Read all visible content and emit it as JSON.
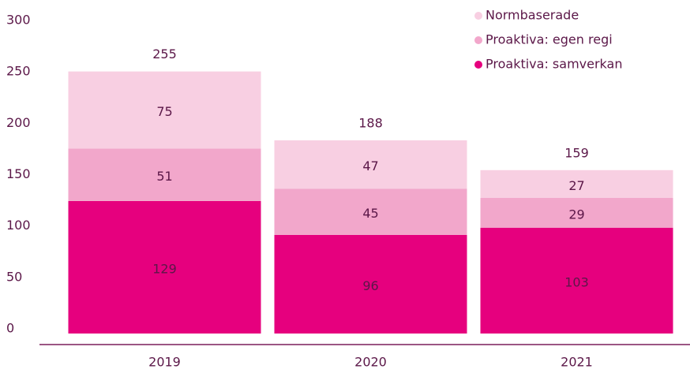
{
  "chart_data": {
    "type": "stacked-bar",
    "categories": [
      "2019",
      "2020",
      "2021"
    ],
    "series": [
      {
        "name": "Proaktiva: samverkan",
        "color": "#e6007e",
        "values": [
          129,
          96,
          103
        ]
      },
      {
        "name": "Proaktiva: egen regi",
        "color": "#f2a7cb",
        "values": [
          51,
          45,
          29
        ]
      },
      {
        "name": "Normbaserade",
        "color": "#f8cfe2",
        "values": [
          75,
          47,
          27
        ]
      }
    ],
    "totals": [
      255,
      188,
      159
    ],
    "ylim": [
      0,
      300
    ],
    "yticks": [
      0,
      50,
      100,
      150,
      200,
      250,
      300
    ],
    "grid": false
  }
}
